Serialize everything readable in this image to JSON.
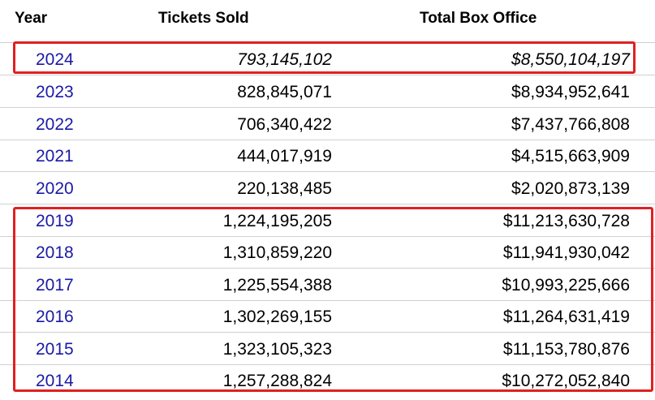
{
  "table": {
    "headers": {
      "year": "Year",
      "tickets": "Tickets Sold",
      "box": "Total Box Office"
    },
    "rows": [
      {
        "year": "2024",
        "tickets": "793,145,102",
        "box": "$8,550,104,197"
      },
      {
        "year": "2023",
        "tickets": "828,845,071",
        "box": "$8,934,952,641"
      },
      {
        "year": "2022",
        "tickets": "706,340,422",
        "box": "$7,437,766,808"
      },
      {
        "year": "2021",
        "tickets": "444,017,919",
        "box": "$4,515,663,909"
      },
      {
        "year": "2020",
        "tickets": "220,138,485",
        "box": "$2,020,873,139"
      },
      {
        "year": "2019",
        "tickets": "1,224,195,205",
        "box": "$11,213,630,728"
      },
      {
        "year": "2018",
        "tickets": "1,310,859,220",
        "box": "$11,941,930,042"
      },
      {
        "year": "2017",
        "tickets": "1,225,554,388",
        "box": "$10,993,225,666"
      },
      {
        "year": "2016",
        "tickets": "1,302,269,155",
        "box": "$11,264,631,419"
      },
      {
        "year": "2015",
        "tickets": "1,323,105,323",
        "box": "$11,153,780,876"
      },
      {
        "year": "2014",
        "tickets": "1,257,288,824",
        "box": "$10,272,052,840"
      }
    ]
  },
  "colors": {
    "link": "#1a1aa6",
    "highlight_border": "#e02020",
    "row_divider": "#d0d0d0"
  }
}
